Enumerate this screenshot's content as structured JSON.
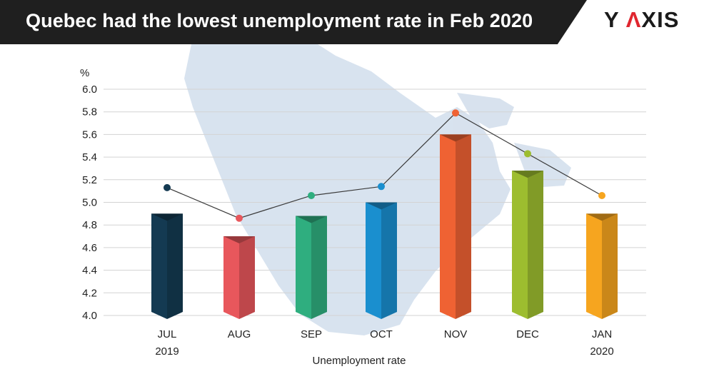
{
  "header": {
    "title": "Quebec had the lowest unemployment rate in Feb 2020",
    "logo_left": "Y ",
    "logo_accent": "Λ",
    "logo_right": "XIS"
  },
  "chart_data": {
    "type": "bar",
    "title": "Quebec had the lowest unemployment rate in Feb 2020",
    "xlabel": "Unemployment rate",
    "ylabel": "%",
    "ylim": [
      4.0,
      6.0
    ],
    "yticks": [
      "4.0",
      "4.2",
      "4.4",
      "4.6",
      "4.8",
      "5.0",
      "5.2",
      "5.4",
      "5.6",
      "5.8",
      "6.0"
    ],
    "categories": [
      "JUL",
      "AUG",
      "SEP",
      "OCT",
      "NOV",
      "DEC",
      "JAN"
    ],
    "category_sublabels": [
      "2019",
      "",
      "",
      "",
      "",
      "",
      "2020"
    ],
    "series": [
      {
        "values": [
          4.9,
          4.7,
          4.88,
          5.0,
          5.6,
          5.28,
          4.9
        ],
        "colors": [
          "#143a52",
          "#e8575c",
          "#2fae7f",
          "#1a8fcf",
          "#ef6233",
          "#9dbd2f",
          "#f6a51f"
        ]
      },
      {
        "values": [
          5.13,
          4.86,
          5.06,
          5.14,
          5.79,
          5.43,
          5.06
        ],
        "colors": [
          "#143a52",
          "#e8575c",
          "#2fae7f",
          "#1a8fcf",
          "#ef6233",
          "#9dbd2f",
          "#f6a51f"
        ]
      }
    ],
    "grid": true,
    "background_color": "#cdd9e8"
  }
}
